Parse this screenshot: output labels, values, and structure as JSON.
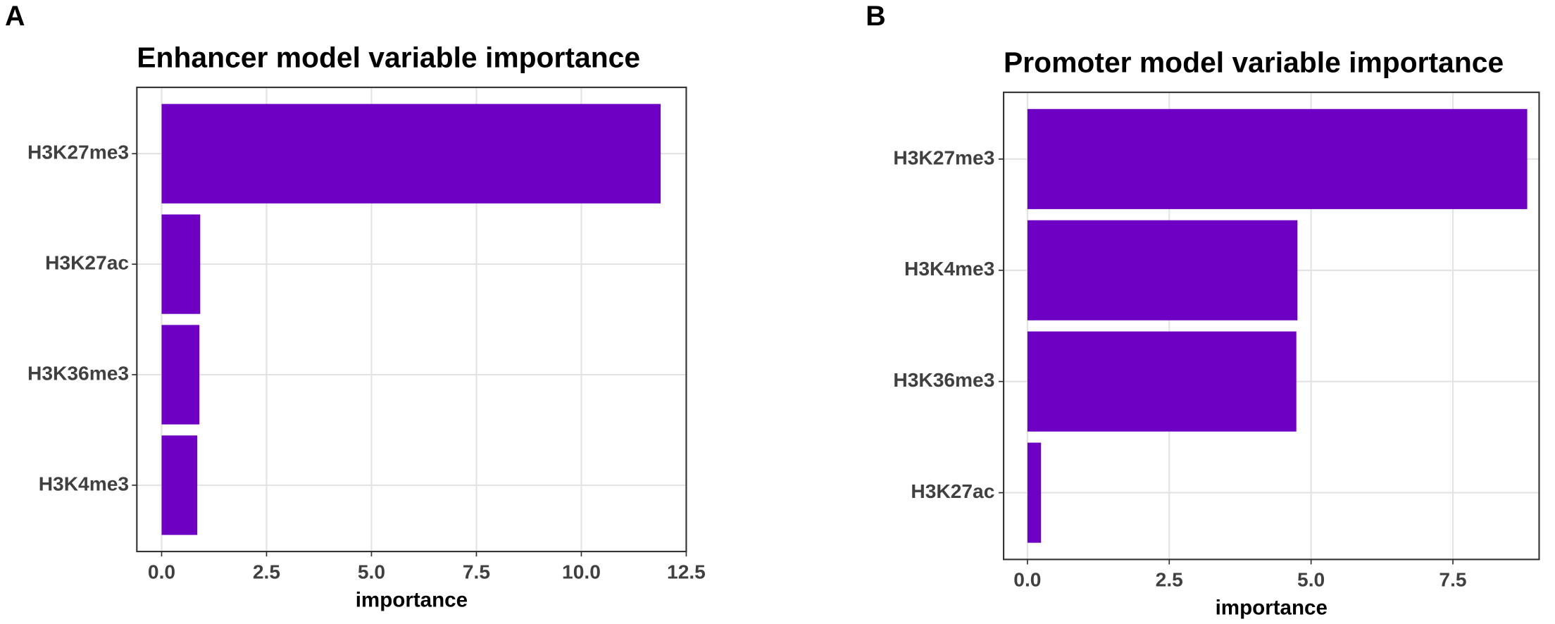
{
  "chart_data": [
    {
      "type": "bar",
      "orientation": "horizontal",
      "panel": "A",
      "title": "Enhancer model variable importance",
      "categories": [
        "H3K27me3",
        "H3K27ac",
        "H3K36me3",
        "H3K4me3"
      ],
      "values": [
        11.89,
        0.92,
        0.9,
        0.85
      ],
      "color": "#6e00c4",
      "xlabel": "importance",
      "xlim": [
        -0.59,
        12.5
      ],
      "xticks": [
        {
          "value": 0,
          "label": "0.0"
        },
        2.5,
        {
          "value": 5,
          "label": "5.0"
        },
        7.5,
        {
          "value": 10,
          "label": "10.0"
        },
        12.5
      ],
      "grid": true
    },
    {
      "type": "bar",
      "orientation": "horizontal",
      "panel": "B",
      "title": "Promoter model variable importance",
      "categories": [
        "H3K27me3",
        "H3K4me3",
        "H3K36me3",
        "H3K27ac"
      ],
      "values": [
        8.81,
        4.76,
        4.74,
        0.24
      ],
      "color": "#6e00c4",
      "xlabel": "importance",
      "xlim": [
        -0.42,
        9.02
      ],
      "xticks": [
        {
          "value": 0,
          "label": "0.0"
        },
        2.5,
        {
          "value": 5,
          "label": "5.0"
        },
        7.5
      ],
      "grid": true
    }
  ]
}
